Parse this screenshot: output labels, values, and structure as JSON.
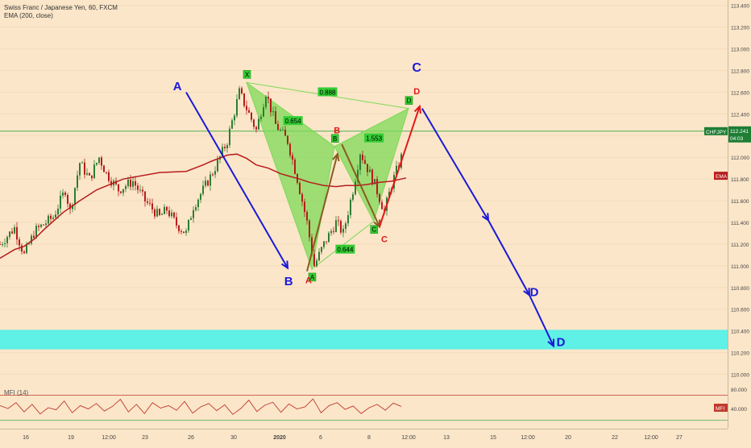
{
  "legend": {
    "symbol_line": "Swiss Franc / Japanese Yen, 60, FXCM",
    "ema_line": "EMA (200, close)",
    "mfi_line": "MFI (14)"
  },
  "price_axis": {
    "ticks": [
      "113.400",
      "113.200",
      "113.000",
      "112.800",
      "112.600",
      "112.400",
      "112.200",
      "112.000",
      "111.800",
      "111.600",
      "111.400",
      "111.200",
      "111.000",
      "110.800",
      "110.600",
      "110.400",
      "110.200",
      "110.000"
    ],
    "symbol_tag": "CHFJPY",
    "price_tag": "112.241",
    "countdown_tag": "04:03",
    "ema_tag": "EMA",
    "mfi_tag": "MFI",
    "mfi_ticks": [
      "80.000",
      "40.000"
    ]
  },
  "time_axis": {
    "ticks": [
      "16",
      "19",
      "12:00",
      "23",
      "26",
      "30",
      "2020",
      "6",
      "8",
      "12:00",
      "13",
      "15",
      "12:00",
      "20",
      "22",
      "12:00",
      "27"
    ]
  },
  "colors": {
    "background": "#fbe6c9",
    "candle_up": "#2e7d32",
    "candle_down": "#b71c1c",
    "ema": "#b71c1c",
    "pattern_fill": "#7ed957",
    "pattern_label": "#33cc33",
    "blue": "#1a1ad8",
    "red": "#e01818",
    "zone": "#5ff0e6",
    "price_line": "#4caf50"
  },
  "chart_data": {
    "type": "candlestick",
    "title": "Swiss Franc / Japanese Yen, 60, FXCM",
    "ylim": [
      109.9,
      113.45
    ],
    "current_price": 112.241,
    "ema_path": [
      {
        "t": 0,
        "p": 111.07
      },
      {
        "t": 0.3,
        "p": 111.15
      },
      {
        "t": 0.5,
        "p": 111.18
      },
      {
        "t": 0.72,
        "p": 111.25
      },
      {
        "t": 0.9,
        "p": 111.33
      },
      {
        "t": 1.1,
        "p": 111.41
      },
      {
        "t": 1.3,
        "p": 111.49
      },
      {
        "t": 1.65,
        "p": 111.6
      },
      {
        "t": 2.0,
        "p": 111.7
      },
      {
        "t": 2.55,
        "p": 111.8
      },
      {
        "t": 3.3,
        "p": 111.86
      },
      {
        "t": 3.85,
        "p": 111.87
      },
      {
        "t": 4.2,
        "p": 111.93
      },
      {
        "t": 4.35,
        "p": 111.96
      },
      {
        "t": 4.7,
        "p": 112.02
      },
      {
        "t": 4.9,
        "p": 112.03
      },
      {
        "t": 5.1,
        "p": 111.99
      },
      {
        "t": 5.3,
        "p": 111.93
      },
      {
        "t": 5.55,
        "p": 111.9
      },
      {
        "t": 5.8,
        "p": 111.85
      },
      {
        "t": 5.95,
        "p": 111.83
      },
      {
        "t": 6.2,
        "p": 111.8
      },
      {
        "t": 6.4,
        "p": 111.77
      },
      {
        "t": 6.7,
        "p": 111.74
      },
      {
        "t": 6.95,
        "p": 111.73
      },
      {
        "t": 7.15,
        "p": 111.74
      },
      {
        "t": 7.4,
        "p": 111.74
      },
      {
        "t": 7.6,
        "p": 111.75
      },
      {
        "t": 7.85,
        "p": 111.77
      },
      {
        "t": 8.1,
        "p": 111.78
      },
      {
        "t": 8.4,
        "p": 111.81
      }
    ],
    "price_path": [
      {
        "t": 0,
        "p": 111.2
      },
      {
        "t": 0.3,
        "p": 111.35
      },
      {
        "t": 0.5,
        "p": 111.1
      },
      {
        "t": 0.72,
        "p": 111.32
      },
      {
        "t": 1.1,
        "p": 111.45
      },
      {
        "t": 1.35,
        "p": 111.7
      },
      {
        "t": 1.45,
        "p": 111.5
      },
      {
        "t": 1.65,
        "p": 111.95
      },
      {
        "t": 1.85,
        "p": 111.8
      },
      {
        "t": 2.05,
        "p": 112.0
      },
      {
        "t": 2.2,
        "p": 111.85
      },
      {
        "t": 2.45,
        "p": 111.7
      },
      {
        "t": 2.75,
        "p": 111.78
      },
      {
        "t": 3.0,
        "p": 111.6
      },
      {
        "t": 3.3,
        "p": 111.45
      },
      {
        "t": 3.45,
        "p": 111.52
      },
      {
        "t": 3.65,
        "p": 111.38
      },
      {
        "t": 3.85,
        "p": 111.3
      },
      {
        "t": 4.0,
        "p": 111.55
      },
      {
        "t": 4.2,
        "p": 111.7
      },
      {
        "t": 4.35,
        "p": 111.82
      },
      {
        "t": 4.5,
        "p": 111.95
      },
      {
        "t": 4.7,
        "p": 112.15
      },
      {
        "t": 4.95,
        "p": 112.6
      },
      {
        "t": 5.1,
        "p": 112.45
      },
      {
        "t": 5.3,
        "p": 112.25
      },
      {
        "t": 5.5,
        "p": 112.6
      },
      {
        "t": 5.7,
        "p": 112.3
      },
      {
        "t": 5.95,
        "p": 112.15
      },
      {
        "t": 6.15,
        "p": 111.8
      },
      {
        "t": 6.35,
        "p": 111.4
      },
      {
        "t": 6.5,
        "p": 111.0
      },
      {
        "t": 6.7,
        "p": 111.2
      },
      {
        "t": 6.95,
        "p": 111.4
      },
      {
        "t": 7.1,
        "p": 111.3
      },
      {
        "t": 7.3,
        "p": 111.7
      },
      {
        "t": 7.45,
        "p": 112.05
      },
      {
        "t": 7.6,
        "p": 111.9
      },
      {
        "t": 7.75,
        "p": 111.75
      },
      {
        "t": 7.95,
        "p": 111.5
      },
      {
        "t": 8.1,
        "p": 111.75
      },
      {
        "t": 8.3,
        "p": 112.0
      },
      {
        "t": 8.55,
        "p": 112.3
      }
    ],
    "harmonic_pattern": {
      "points": [
        {
          "label": "X",
          "t": 5.1,
          "p": 112.69
        },
        {
          "label": "A",
          "t": 6.45,
          "p": 110.97
        },
        {
          "label": "B",
          "t": 6.92,
          "p": 112.1
        },
        {
          "label": "C",
          "t": 7.73,
          "p": 111.41
        },
        {
          "label": "D",
          "t": 8.45,
          "p": 112.45
        }
      ],
      "ratios": [
        "0.888",
        "0.654",
        "1.553",
        "0.644"
      ]
    },
    "annotations": {
      "abcd_blue_left": [
        "A",
        "B"
      ],
      "abcd_red": [
        "A",
        "B",
        "C",
        "D"
      ],
      "projection_blue": [
        "C",
        "D",
        "D"
      ]
    },
    "mfi": {
      "levels": [
        80,
        20
      ],
      "ylim": [
        0,
        100
      ],
      "values": [
        55,
        48,
        62,
        40,
        58,
        35,
        50,
        45,
        66,
        38,
        55,
        47,
        60,
        42,
        53,
        70,
        40,
        58,
        36,
        62,
        49,
        55,
        44,
        65,
        37,
        52,
        60,
        43,
        57,
        34,
        48,
        68,
        41,
        56,
        63,
        39,
        59,
        47,
        52,
        71,
        38,
        55,
        62,
        46,
        54,
        36,
        50,
        58,
        44,
        61,
        53
      ]
    }
  }
}
